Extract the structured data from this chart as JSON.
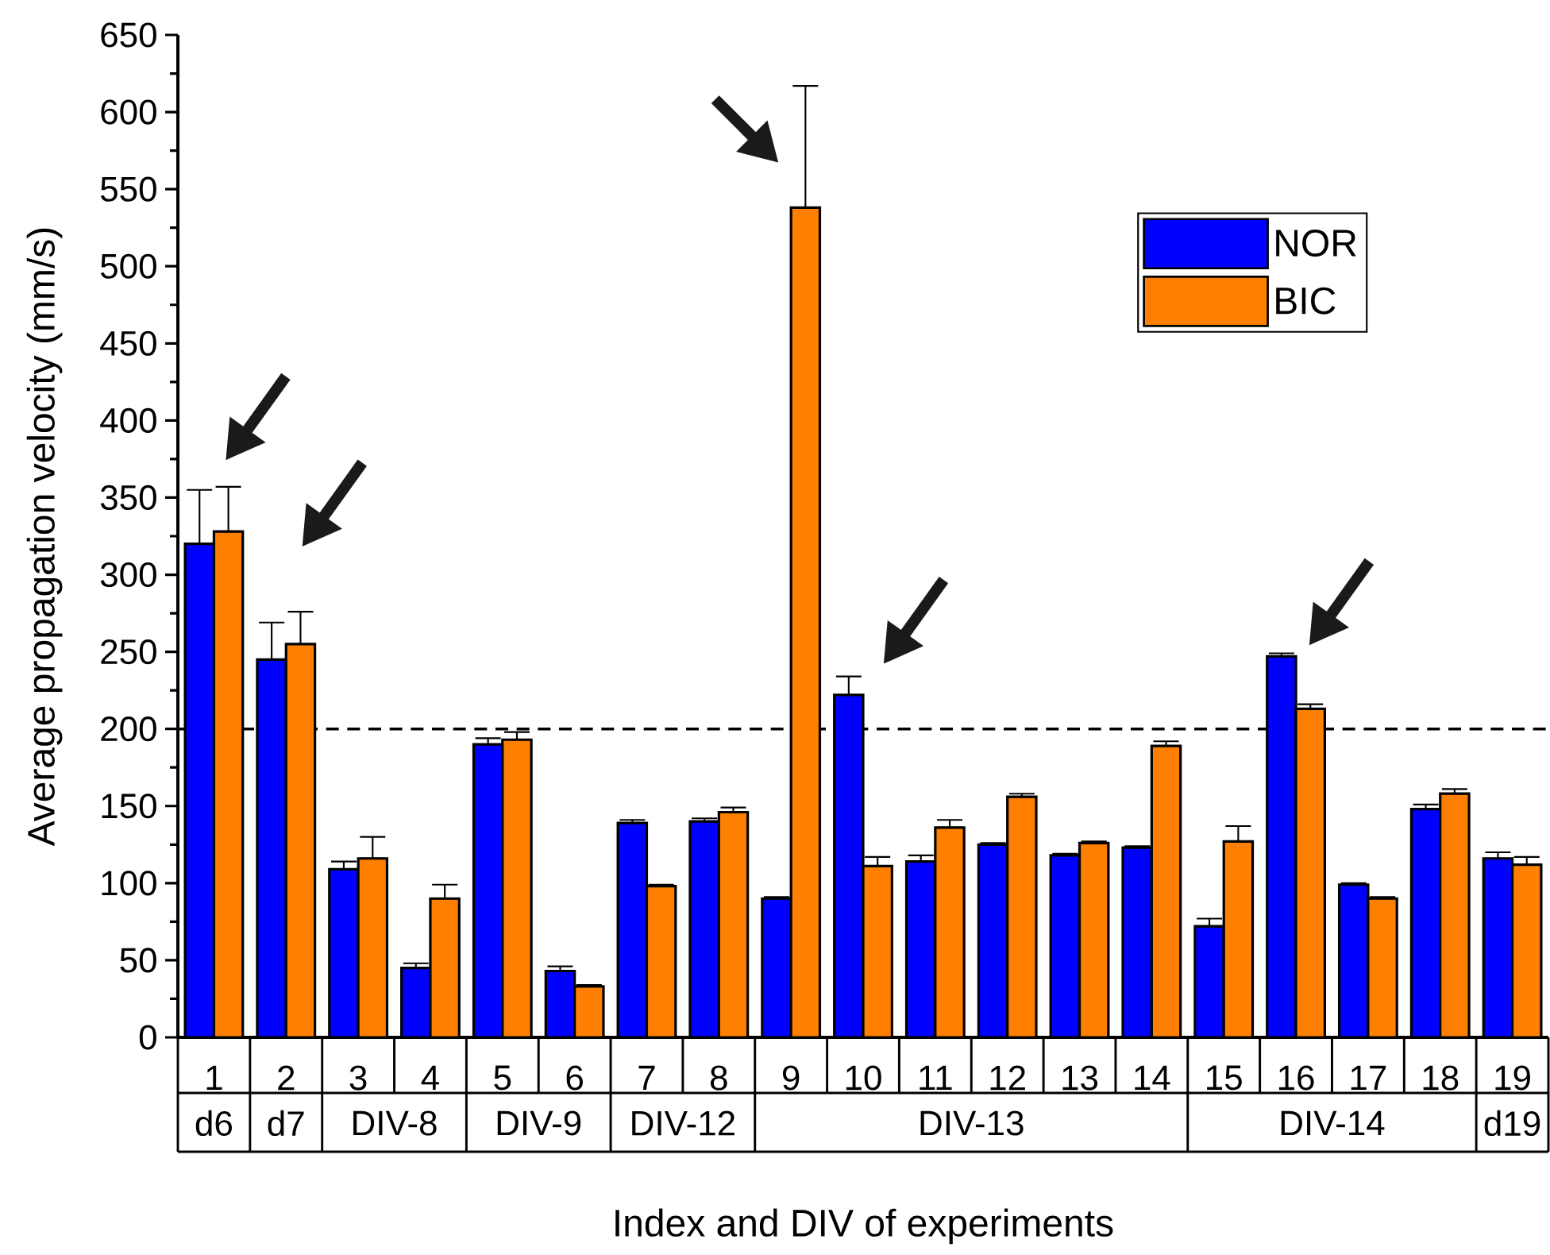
{
  "chart_data": {
    "type": "bar",
    "xlabel": "Index and DIV of experiments",
    "ylabel": "Average propagation velocity (mm/s)",
    "categories": [
      "1",
      "2",
      "3",
      "4",
      "5",
      "6",
      "7",
      "8",
      "9",
      "10",
      "11",
      "12",
      "13",
      "14",
      "15",
      "16",
      "17",
      "18",
      "19"
    ],
    "series": [
      {
        "name": "NOR",
        "color": "#0000ff",
        "values": [
          320,
          245,
          109,
          45,
          190,
          43,
          139,
          140,
          90,
          222,
          114,
          125,
          118,
          123,
          72,
          247,
          99,
          148,
          116
        ],
        "errors": [
          [
            320,
            355
          ],
          [
            245,
            269
          ],
          [
            109,
            114
          ],
          [
            45,
            48
          ],
          [
            190,
            194
          ],
          [
            43,
            46
          ],
          [
            139,
            141
          ],
          [
            140,
            142
          ],
          [
            90,
            91
          ],
          [
            222,
            234
          ],
          [
            114,
            118
          ],
          [
            125,
            126
          ],
          [
            118,
            119
          ],
          [
            123,
            124
          ],
          [
            72,
            77
          ],
          [
            247,
            249
          ],
          [
            99,
            100
          ],
          [
            148,
            151
          ],
          [
            116,
            120
          ]
        ]
      },
      {
        "name": "BIC",
        "color": "#ff8000",
        "values": [
          328,
          255,
          116,
          90,
          193,
          33,
          98,
          146,
          538,
          111,
          136,
          156,
          126,
          189,
          127,
          213,
          90,
          158,
          112
        ],
        "errors": [
          [
            328,
            357
          ],
          [
            255,
            276
          ],
          [
            116,
            130
          ],
          [
            90,
            99
          ],
          [
            193,
            198
          ],
          [
            33,
            34
          ],
          [
            98,
            99
          ],
          [
            146,
            149
          ],
          [
            538,
            617
          ],
          [
            111,
            117
          ],
          [
            136,
            141
          ],
          [
            156,
            158
          ],
          [
            126,
            127
          ],
          [
            189,
            192
          ],
          [
            127,
            137
          ],
          [
            213,
            216
          ],
          [
            90,
            91
          ],
          [
            158,
            161
          ],
          [
            112,
            117
          ]
        ]
      }
    ],
    "ylim": [
      0,
      650
    ],
    "yticks": [
      0,
      50,
      100,
      150,
      200,
      250,
      300,
      350,
      400,
      450,
      500,
      550,
      600,
      650
    ],
    "ref_lines": [
      {
        "axis": "y",
        "value": 200,
        "line_style": "dashed",
        "color": "#000000"
      }
    ],
    "annotations": [
      "d6",
      "d7",
      "DIV-8",
      "DIV-9",
      "DIV-12",
      "DIV-13",
      "DIV-14",
      "d19"
    ],
    "legend": "top right"
  }
}
